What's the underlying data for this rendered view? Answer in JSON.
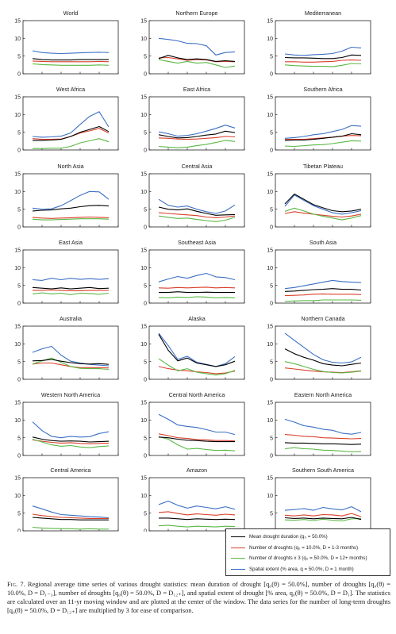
{
  "chart_data": {
    "type": "line",
    "small_multiples": true,
    "x_ticks": [
      1950,
      1960,
      1970,
      1980,
      1990,
      2000
    ],
    "y_ticks": [
      0,
      5,
      10,
      15
    ],
    "xlim": [
      1950,
      2000
    ],
    "ylim": [
      0,
      15
    ],
    "legend": {
      "placement": "bottom-right",
      "entries": [
        {
          "key": "duration",
          "label": "Mean drought duration (q₀ = 50.0%)",
          "color": "#000000"
        },
        {
          "key": "short",
          "label": "Number of droughts (q₀ = 10.0%, D = 1-3 months)",
          "color": "#d9402b"
        },
        {
          "key": "long",
          "label": "Number of droughts x 3 (q₀ = 50.0%, D = 12+ months)",
          "color": "#5ab845"
        },
        {
          "key": "spatial",
          "label": "Spatial extent (% area, q = 50.0%, D = 1 month)",
          "color": "#3b6fc4"
        }
      ]
    },
    "x": [
      1955,
      1960,
      1965,
      1970,
      1975,
      1980,
      1985,
      1990,
      1995
    ],
    "panels": [
      {
        "title": "World",
        "series": {
          "duration": [
            4.3,
            4.0,
            3.9,
            3.9,
            3.9,
            4.0,
            4.0,
            4.0,
            4.0
          ],
          "short": [
            3.6,
            3.5,
            3.4,
            3.4,
            3.4,
            3.4,
            3.4,
            3.5,
            3.4
          ],
          "long": [
            2.8,
            2.6,
            2.5,
            2.4,
            2.4,
            2.4,
            2.4,
            2.5,
            2.4
          ],
          "spatial": [
            6.5,
            6.0,
            5.8,
            5.7,
            5.8,
            5.9,
            6.0,
            6.1,
            6.0
          ]
        }
      },
      {
        "title": "Northern Europe",
        "series": {
          "duration": [
            4.3,
            5.2,
            4.5,
            4.0,
            4.2,
            4.0,
            3.5,
            3.7,
            3.5
          ],
          "short": [
            4.5,
            4.6,
            4.2,
            3.8,
            4.0,
            3.9,
            3.4,
            3.5,
            3.4
          ],
          "long": [
            4.0,
            3.5,
            3.0,
            3.5,
            3.0,
            3.2,
            2.5,
            1.8,
            2.2
          ],
          "spatial": [
            10.0,
            9.7,
            9.3,
            8.6,
            8.5,
            7.9,
            5.3,
            6.0,
            6.2
          ]
        }
      },
      {
        "title": "Mediterranean",
        "series": {
          "duration": [
            4.6,
            4.5,
            4.5,
            4.4,
            4.3,
            4.3,
            4.6,
            5.3,
            5.2
          ],
          "short": [
            3.4,
            3.4,
            3.3,
            3.3,
            3.4,
            3.5,
            3.8,
            3.9,
            3.8
          ],
          "long": [
            2.5,
            2.3,
            2.2,
            2.1,
            2.1,
            2.0,
            2.4,
            2.9,
            2.8
          ],
          "spatial": [
            5.6,
            5.3,
            5.2,
            5.4,
            5.5,
            5.7,
            6.4,
            7.5,
            7.3
          ]
        }
      },
      {
        "title": "West Africa",
        "series": {
          "duration": [
            2.7,
            2.7,
            2.8,
            3.0,
            3.8,
            5.0,
            5.8,
            6.6,
            5.2
          ],
          "short": [
            3.2,
            3.0,
            3.0,
            3.1,
            3.8,
            4.8,
            5.4,
            6.1,
            4.8
          ],
          "long": [
            0.4,
            0.4,
            0.5,
            0.5,
            1.0,
            2.0,
            2.6,
            3.2,
            2.3
          ],
          "spatial": [
            3.8,
            3.6,
            3.7,
            3.9,
            4.8,
            7.2,
            9.5,
            10.8,
            6.5
          ]
        }
      },
      {
        "title": "East Africa",
        "series": {
          "duration": [
            4.3,
            3.8,
            3.4,
            3.5,
            3.8,
            4.2,
            4.5,
            5.3,
            4.9
          ],
          "short": [
            3.4,
            3.3,
            3.1,
            3.0,
            3.1,
            3.3,
            3.5,
            3.8,
            3.7
          ],
          "long": [
            1.0,
            0.8,
            0.6,
            0.8,
            1.2,
            1.6,
            2.1,
            2.7,
            2.4
          ],
          "spatial": [
            5.1,
            4.6,
            3.9,
            4.1,
            4.6,
            5.3,
            6.1,
            7.0,
            6.2
          ]
        }
      },
      {
        "title": "Southern Africa",
        "series": {
          "duration": [
            2.7,
            2.8,
            2.8,
            3.0,
            3.3,
            3.6,
            3.9,
            4.6,
            4.3
          ],
          "short": [
            3.0,
            3.0,
            3.0,
            3.2,
            3.4,
            3.6,
            3.9,
            4.1,
            4.0
          ],
          "long": [
            1.1,
            1.0,
            1.2,
            1.4,
            1.5,
            1.8,
            2.2,
            2.6,
            2.5
          ],
          "spatial": [
            3.3,
            3.5,
            3.8,
            4.3,
            4.6,
            5.2,
            5.8,
            6.9,
            6.7
          ]
        }
      },
      {
        "title": "North Asia",
        "series": {
          "duration": [
            4.5,
            4.7,
            4.8,
            5.1,
            5.3,
            5.7,
            6.0,
            6.1,
            5.9
          ],
          "short": [
            2.7,
            2.5,
            2.4,
            2.5,
            2.6,
            2.7,
            2.8,
            2.7,
            2.6
          ],
          "long": [
            2.2,
            2.0,
            2.0,
            2.1,
            2.2,
            2.3,
            2.3,
            2.3,
            2.2
          ],
          "spatial": [
            5.3,
            5.0,
            5.1,
            6.0,
            7.4,
            8.9,
            10.0,
            9.9,
            7.8
          ]
        }
      },
      {
        "title": "Central Asia",
        "series": {
          "duration": [
            5.6,
            5.0,
            4.8,
            5.1,
            4.4,
            3.8,
            3.3,
            3.4,
            3.5
          ],
          "short": [
            4.0,
            3.8,
            3.6,
            3.4,
            3.2,
            2.8,
            2.6,
            2.8,
            3.1
          ],
          "long": [
            3.1,
            2.7,
            2.4,
            2.5,
            2.1,
            1.8,
            1.5,
            1.9,
            2.7
          ],
          "spatial": [
            7.8,
            6.1,
            5.6,
            5.9,
            5.0,
            4.3,
            3.8,
            4.5,
            6.2
          ]
        }
      },
      {
        "title": "Tibetan Plateau",
        "series": {
          "duration": [
            6.5,
            9.3,
            7.8,
            6.3,
            5.4,
            4.6,
            4.3,
            4.5,
            5.0
          ],
          "short": [
            3.8,
            4.3,
            3.9,
            3.6,
            3.3,
            3.0,
            2.8,
            3.1,
            3.6
          ],
          "long": [
            4.4,
            5.3,
            4.5,
            3.6,
            3.0,
            2.5,
            2.0,
            2.5,
            3.2
          ],
          "spatial": [
            5.8,
            9.0,
            7.5,
            6.0,
            5.0,
            4.0,
            3.6,
            4.0,
            4.6
          ]
        }
      },
      {
        "title": "East Asia",
        "series": {
          "duration": [
            4.4,
            4.2,
            4.0,
            4.3,
            4.0,
            4.2,
            4.4,
            4.1,
            4.2
          ],
          "short": [
            3.6,
            3.6,
            3.7,
            3.6,
            3.5,
            3.5,
            3.6,
            3.6,
            3.6
          ],
          "long": [
            2.6,
            2.9,
            2.6,
            2.8,
            2.4,
            2.8,
            2.7,
            2.5,
            2.8
          ],
          "spatial": [
            6.6,
            6.4,
            7.0,
            6.6,
            7.0,
            6.7,
            6.9,
            6.7,
            6.9
          ]
        }
      },
      {
        "title": "Southeast Asia",
        "series": {
          "duration": [
            3.0,
            3.0,
            3.2,
            3.0,
            3.0,
            3.1,
            3.0,
            3.0,
            3.0
          ],
          "short": [
            4.3,
            4.2,
            4.4,
            4.3,
            4.4,
            4.5,
            4.3,
            4.4,
            4.3
          ],
          "long": [
            1.6,
            1.5,
            1.7,
            1.6,
            1.8,
            1.7,
            1.5,
            1.6,
            1.5
          ],
          "spatial": [
            6.0,
            6.8,
            7.5,
            7.0,
            7.8,
            8.4,
            7.4,
            7.2,
            6.6
          ]
        }
      },
      {
        "title": "South Asia",
        "series": {
          "duration": [
            3.3,
            3.4,
            3.6,
            3.8,
            3.9,
            4.1,
            3.9,
            3.9,
            3.7
          ],
          "short": [
            2.1,
            2.2,
            2.3,
            2.5,
            2.6,
            2.5,
            2.5,
            2.5,
            2.4
          ],
          "long": [
            0.5,
            0.6,
            0.7,
            0.7,
            0.9,
            0.9,
            0.9,
            0.9,
            0.8
          ],
          "spatial": [
            4.1,
            4.4,
            4.9,
            5.4,
            5.9,
            6.4,
            6.1,
            5.9,
            5.8
          ]
        }
      },
      {
        "title": "Australia",
        "series": {
          "duration": [
            5.2,
            5.3,
            5.6,
            5.1,
            4.7,
            4.4,
            4.3,
            4.4,
            4.2
          ],
          "short": [
            4.3,
            4.6,
            4.6,
            4.1,
            3.6,
            3.3,
            3.3,
            3.3,
            3.2
          ],
          "long": [
            4.3,
            5.2,
            6.0,
            4.8,
            3.6,
            3.1,
            3.0,
            3.0,
            2.8
          ],
          "spatial": [
            7.6,
            8.6,
            9.3,
            6.8,
            5.1,
            4.6,
            4.2,
            4.0,
            3.8
          ]
        }
      },
      {
        "title": "Alaska",
        "series": {
          "duration": [
            12.7,
            8.2,
            5.2,
            6.0,
            4.6,
            4.1,
            3.6,
            4.1,
            5.1
          ],
          "short": [
            3.6,
            3.0,
            2.6,
            2.4,
            2.1,
            1.9,
            1.6,
            1.8,
            2.3
          ],
          "long": [
            5.8,
            4.0,
            2.4,
            3.0,
            2.0,
            1.6,
            1.2,
            1.6,
            2.5
          ],
          "spatial": [
            13.0,
            9.5,
            5.6,
            6.5,
            4.8,
            4.2,
            3.6,
            4.4,
            6.4
          ]
        }
      },
      {
        "title": "Northern Canada",
        "series": {
          "duration": [
            8.6,
            7.2,
            6.2,
            5.4,
            4.4,
            4.0,
            3.8,
            4.2,
            4.6
          ],
          "short": [
            3.2,
            2.9,
            2.6,
            2.3,
            2.1,
            2.0,
            1.9,
            2.1,
            2.4
          ],
          "long": [
            5.0,
            4.4,
            3.6,
            2.8,
            2.2,
            1.9,
            1.8,
            2.0,
            2.3
          ],
          "spatial": [
            13.0,
            11.0,
            9.0,
            7.0,
            5.5,
            4.8,
            4.6,
            4.9,
            6.2
          ]
        }
      },
      {
        "title": "Western North America",
        "series": {
          "duration": [
            5.2,
            4.6,
            4.2,
            4.0,
            4.1,
            4.0,
            3.8,
            3.9,
            4.0
          ],
          "short": [
            4.4,
            4.0,
            3.7,
            3.5,
            3.6,
            3.4,
            3.3,
            3.4,
            3.5
          ],
          "long": [
            4.6,
            3.8,
            3.0,
            2.6,
            2.8,
            2.4,
            2.2,
            2.5,
            2.7
          ],
          "spatial": [
            9.5,
            7.0,
            5.4,
            5.0,
            5.4,
            5.2,
            5.3,
            6.2,
            6.7
          ]
        }
      },
      {
        "title": "Central North America",
        "series": {
          "duration": [
            5.2,
            5.0,
            4.6,
            4.3,
            4.2,
            4.0,
            3.9,
            3.9,
            3.9
          ],
          "short": [
            6.1,
            5.6,
            5.0,
            4.8,
            4.5,
            4.4,
            4.2,
            4.2,
            4.1
          ],
          "long": [
            5.3,
            4.6,
            3.0,
            1.8,
            2.0,
            1.7,
            1.4,
            1.5,
            1.3
          ],
          "spatial": [
            11.6,
            10.2,
            8.6,
            8.2,
            7.9,
            7.3,
            6.6,
            6.6,
            5.9
          ]
        }
      },
      {
        "title": "Eastern North America",
        "series": {
          "duration": [
            3.6,
            3.5,
            3.5,
            3.4,
            3.3,
            3.3,
            3.2,
            3.1,
            3.2
          ],
          "short": [
            5.9,
            5.7,
            5.4,
            5.3,
            5.0,
            4.9,
            4.8,
            4.7,
            4.8
          ],
          "long": [
            1.9,
            2.2,
            1.9,
            1.8,
            1.5,
            1.4,
            1.2,
            1.0,
            1.1
          ],
          "spatial": [
            10.2,
            9.4,
            8.4,
            8.0,
            7.4,
            7.1,
            6.3,
            6.0,
            6.5
          ]
        }
      },
      {
        "title": "Central America",
        "series": {
          "duration": [
            3.8,
            3.6,
            3.4,
            3.2,
            3.2,
            3.1,
            3.1,
            3.1,
            3.1
          ],
          "short": [
            4.7,
            4.3,
            4.0,
            3.8,
            3.7,
            3.6,
            3.5,
            3.5,
            3.5
          ],
          "long": [
            1.0,
            0.8,
            0.7,
            0.6,
            0.6,
            0.5,
            0.6,
            0.5,
            0.5
          ],
          "spatial": [
            7.0,
            6.2,
            5.3,
            4.6,
            4.4,
            4.2,
            4.0,
            3.9,
            3.7
          ]
        }
      },
      {
        "title": "Amazon",
        "series": {
          "duration": [
            3.6,
            3.6,
            3.4,
            3.2,
            3.4,
            3.3,
            3.2,
            3.3,
            3.2
          ],
          "short": [
            5.2,
            5.4,
            4.9,
            4.5,
            4.8,
            4.6,
            4.4,
            4.7,
            4.5
          ],
          "long": [
            1.4,
            1.6,
            1.3,
            1.1,
            1.3,
            1.2,
            1.1,
            1.3,
            1.2
          ],
          "spatial": [
            7.4,
            8.4,
            7.2,
            6.4,
            7.0,
            6.6,
            6.2,
            6.8,
            6.1
          ]
        }
      },
      {
        "title": "Southern South America",
        "series": {
          "duration": [
            3.7,
            3.5,
            3.6,
            3.4,
            3.6,
            3.5,
            3.4,
            3.8,
            3.2
          ],
          "short": [
            4.4,
            4.2,
            4.5,
            4.2,
            4.6,
            4.5,
            4.2,
            4.9,
            4.0
          ],
          "long": [
            3.1,
            3.0,
            3.2,
            2.9,
            3.3,
            3.0,
            2.8,
            3.4,
            3.5
          ],
          "spatial": [
            5.8,
            6.0,
            6.3,
            5.8,
            6.6,
            6.2,
            5.9,
            6.8,
            5.4
          ]
        }
      }
    ]
  },
  "caption": {
    "label": "Fig. 7.",
    "text": "Regional average time series of various drought statistics: mean duration of drought [q₀(θ) = 50.0%], number of droughts [q₀(θ) = 10.0%, D = D₁₋₃], number of droughts [q₀(θ) = 50.0%, D = D₁₂₊], and spatial extent of drought [% area, q₀(θ) = 50.0%, D = D₁]. The statistics are calculated over an 11-yr moving window and are plotted at the center of the window. The data series for the number of long-term droughts [q₀(θ) = 50.0%, D = D₁₂₊] are multiplied by 3 for ease of comparison."
  }
}
